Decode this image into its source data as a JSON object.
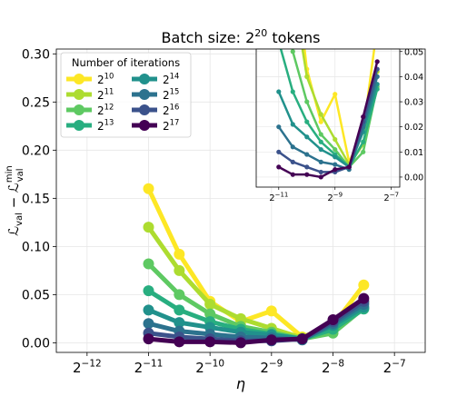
{
  "chart_data": {
    "type": "line",
    "title": "Batch size: 2^20 tokens",
    "title_parts": {
      "base": "Batch size: 2",
      "exp": "20",
      "suffix": " tokens"
    },
    "xlabel": "η",
    "ylabel": "L_val − L_val^min",
    "ylabel_parts": {
      "L": "ℒ",
      "sub": "val",
      "minus": " − ",
      "sup": "min"
    },
    "x_scale": "log2",
    "x": [
      -11,
      -10.5,
      -10,
      -9.5,
      -9,
      -8.5,
      -8,
      -7.5
    ],
    "xlim": [
      -12.5,
      -6.5
    ],
    "ylim": [
      -0.01,
      0.305
    ],
    "x_ticks": [
      -12,
      -11,
      -10,
      -9,
      -8,
      -7
    ],
    "x_tick_labels": [
      {
        "base": "2",
        "exp": "−12"
      },
      {
        "base": "2",
        "exp": "−11"
      },
      {
        "base": "2",
        "exp": "−10"
      },
      {
        "base": "2",
        "exp": "−9"
      },
      {
        "base": "2",
        "exp": "−8"
      },
      {
        "base": "2",
        "exp": "−7"
      }
    ],
    "y_ticks": [
      0,
      0.05,
      0.1,
      0.15,
      0.2,
      0.25,
      0.3
    ],
    "y_tick_labels": [
      "0.00",
      "0.05",
      "0.10",
      "0.15",
      "0.20",
      "0.25",
      "0.30"
    ],
    "grid": true,
    "legend": {
      "title": "Number of iterations",
      "placement": "top-left",
      "columns": 2
    },
    "series": [
      {
        "name": "2^10",
        "base": "2",
        "exp": "10",
        "color": "#fde725",
        "values": [
          0.16,
          0.092,
          0.043,
          0.022,
          0.033,
          0.006,
          0.018,
          0.06
        ]
      },
      {
        "name": "2^11",
        "base": "2",
        "exp": "11",
        "color": "#addc30",
        "values": [
          0.12,
          0.075,
          0.04,
          0.025,
          0.015,
          0.005,
          0.013,
          0.042
        ]
      },
      {
        "name": "2^12",
        "base": "2",
        "exp": "12",
        "color": "#5ec962",
        "values": [
          0.082,
          0.05,
          0.03,
          0.017,
          0.011,
          0.004,
          0.01,
          0.036
        ]
      },
      {
        "name": "2^13",
        "base": "2",
        "exp": "13",
        "color": "#28ae80",
        "values": [
          0.054,
          0.034,
          0.022,
          0.014,
          0.009,
          0.004,
          0.014,
          0.035
        ]
      },
      {
        "name": "2^14",
        "base": "2",
        "exp": "14",
        "color": "#21918c",
        "values": [
          0.034,
          0.021,
          0.016,
          0.011,
          0.008,
          0.004,
          0.018,
          0.037
        ]
      },
      {
        "name": "2^15",
        "base": "2",
        "exp": "15",
        "color": "#2c728e",
        "values": [
          0.02,
          0.012,
          0.009,
          0.006,
          0.005,
          0.003,
          0.02,
          0.04
        ]
      },
      {
        "name": "2^16",
        "base": "2",
        "exp": "16",
        "color": "#3b528b",
        "values": [
          0.01,
          0.006,
          0.004,
          0.002,
          0.002,
          0.004,
          0.022,
          0.043
        ]
      },
      {
        "name": "2^17",
        "base": "2",
        "exp": "17",
        "color": "#440154",
        "values": [
          0.004,
          0.001,
          0.001,
          0.0,
          0.003,
          0.004,
          0.024,
          0.046
        ]
      }
    ],
    "inset": {
      "xlim": [
        -11.8,
        -6.7
      ],
      "ylim": [
        -0.004,
        0.051
      ],
      "x_ticks": [
        -11,
        -9,
        -7
      ],
      "x_tick_labels": [
        {
          "base": "2",
          "exp": "−11"
        },
        {
          "base": "2",
          "exp": "−9"
        },
        {
          "base": "2",
          "exp": "−7"
        }
      ],
      "y_ticks": [
        0,
        0.01,
        0.02,
        0.03,
        0.04,
        0.05
      ],
      "y_tick_labels": [
        "0.00",
        "0.01",
        "0.02",
        "0.03",
        "0.04",
        "0.05"
      ]
    }
  }
}
